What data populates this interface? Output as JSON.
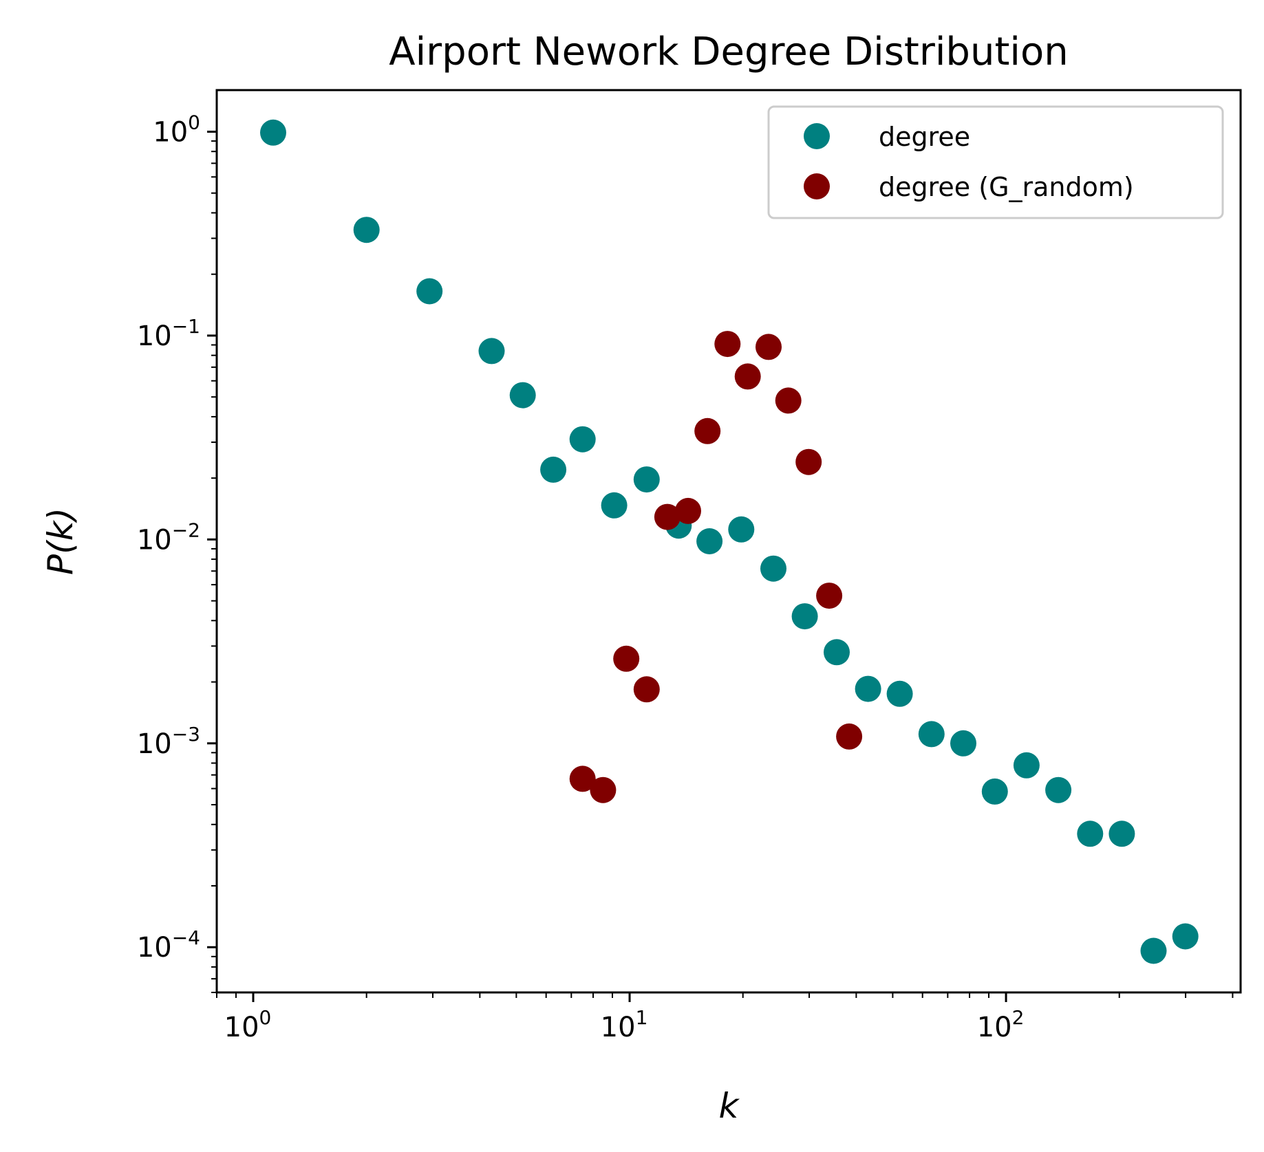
{
  "chart_data": {
    "type": "scatter",
    "title": "Airport Nework Degree Distribution",
    "xlabel": "k",
    "ylabel": "P(k)",
    "xscale": "log",
    "yscale": "log",
    "xlim": [
      0.8,
      420
    ],
    "ylim": [
      6e-05,
      1.6
    ],
    "x_ticks": [
      {
        "value": 1,
        "base": "10",
        "exp": "0"
      },
      {
        "value": 10,
        "base": "10",
        "exp": "1"
      },
      {
        "value": 100,
        "base": "10",
        "exp": "2"
      }
    ],
    "y_ticks": [
      {
        "value": 1,
        "base": "10",
        "exp": "0"
      },
      {
        "value": 0.1,
        "base": "10",
        "exp": "−1"
      },
      {
        "value": 0.01,
        "base": "10",
        "exp": "−2"
      },
      {
        "value": 0.001,
        "base": "10",
        "exp": "−3"
      },
      {
        "value": 0.0001,
        "base": "10",
        "exp": "−4"
      }
    ],
    "grid": false,
    "legend_position": "top-right",
    "series": [
      {
        "name": "degree",
        "color": "#008080",
        "points": [
          [
            1.13,
            0.99
          ],
          [
            2.0,
            0.33
          ],
          [
            2.94,
            0.165
          ],
          [
            4.3,
            0.084
          ],
          [
            5.2,
            0.051
          ],
          [
            6.27,
            0.022
          ],
          [
            7.5,
            0.031
          ],
          [
            9.1,
            0.0147
          ],
          [
            11.1,
            0.0197
          ],
          [
            13.5,
            0.0117
          ],
          [
            16.3,
            0.0098
          ],
          [
            19.8,
            0.0112
          ],
          [
            24.1,
            0.0072
          ],
          [
            29.2,
            0.0042
          ],
          [
            35.5,
            0.0028
          ],
          [
            43.0,
            0.00185
          ],
          [
            52.2,
            0.00175
          ],
          [
            63.4,
            0.00111
          ],
          [
            77.0,
            0.001
          ],
          [
            93.4,
            0.00058
          ],
          [
            113.4,
            0.00078
          ],
          [
            137.7,
            0.00059
          ],
          [
            167.3,
            0.00036
          ],
          [
            203.1,
            0.00036
          ],
          [
            246.6,
            9.6e-05
          ],
          [
            299.5,
            0.000113
          ]
        ]
      },
      {
        "name": "degree (G_random)",
        "color": "#800000",
        "points": [
          [
            7.5,
            0.00067
          ],
          [
            8.5,
            0.00059
          ],
          [
            9.8,
            0.0026
          ],
          [
            11.1,
            0.00184
          ],
          [
            12.6,
            0.0129
          ],
          [
            14.3,
            0.0138
          ],
          [
            16.1,
            0.034
          ],
          [
            18.2,
            0.091
          ],
          [
            20.6,
            0.063
          ],
          [
            23.4,
            0.088
          ],
          [
            26.4,
            0.048
          ],
          [
            29.9,
            0.024
          ],
          [
            33.9,
            0.0053
          ],
          [
            38.3,
            0.00108
          ]
        ]
      }
    ]
  }
}
